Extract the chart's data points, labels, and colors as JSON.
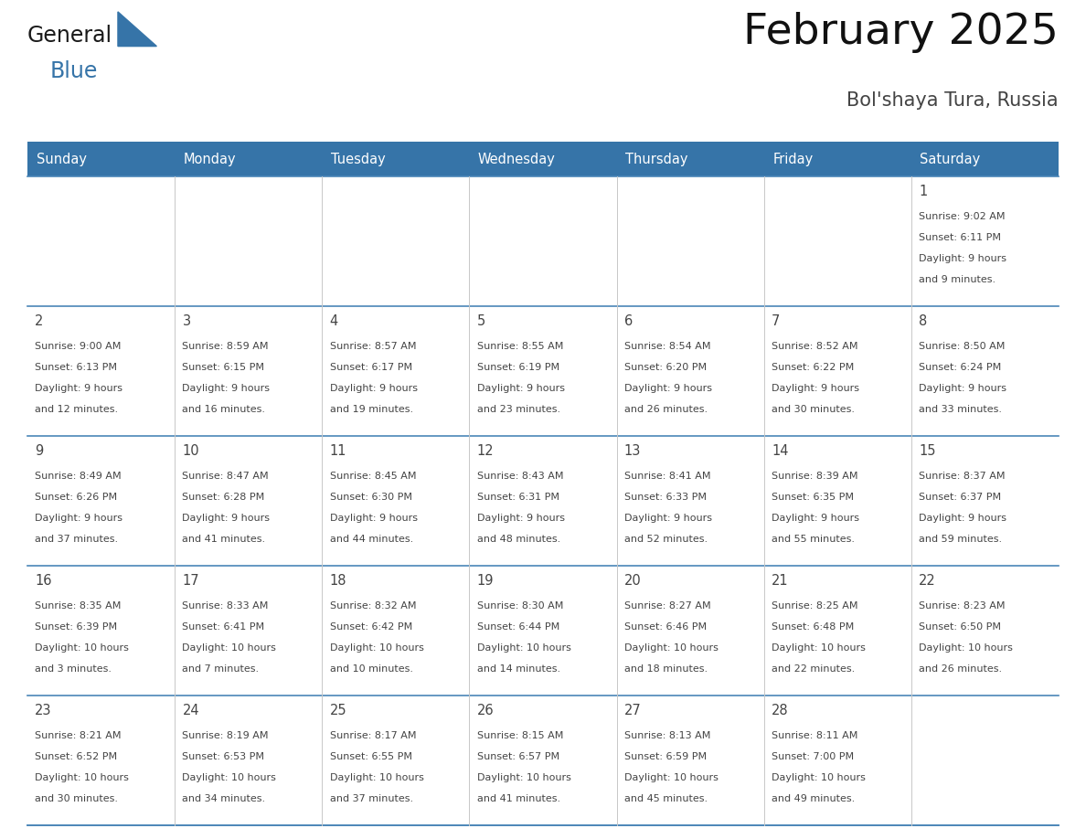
{
  "title": "February 2025",
  "subtitle": "Bol'shaya Tura, Russia",
  "days_of_week": [
    "Sunday",
    "Monday",
    "Tuesday",
    "Wednesday",
    "Thursday",
    "Friday",
    "Saturday"
  ],
  "header_color": "#3674a8",
  "header_text_color": "#ffffff",
  "border_color": "#3674a8",
  "row_border_color": "#4a86b8",
  "text_color": "#444444",
  "title_color": "#111111",
  "subtitle_color": "#444444",
  "logo_general_color": "#1a1a1a",
  "logo_blue_color": "#3674a8",
  "logo_triangle_color": "#3674a8",
  "calendar_data": [
    [
      {
        "day": null,
        "info": ""
      },
      {
        "day": null,
        "info": ""
      },
      {
        "day": null,
        "info": ""
      },
      {
        "day": null,
        "info": ""
      },
      {
        "day": null,
        "info": ""
      },
      {
        "day": null,
        "info": ""
      },
      {
        "day": 1,
        "info": "Sunrise: 9:02 AM\nSunset: 6:11 PM\nDaylight: 9 hours\nand 9 minutes."
      }
    ],
    [
      {
        "day": 2,
        "info": "Sunrise: 9:00 AM\nSunset: 6:13 PM\nDaylight: 9 hours\nand 12 minutes."
      },
      {
        "day": 3,
        "info": "Sunrise: 8:59 AM\nSunset: 6:15 PM\nDaylight: 9 hours\nand 16 minutes."
      },
      {
        "day": 4,
        "info": "Sunrise: 8:57 AM\nSunset: 6:17 PM\nDaylight: 9 hours\nand 19 minutes."
      },
      {
        "day": 5,
        "info": "Sunrise: 8:55 AM\nSunset: 6:19 PM\nDaylight: 9 hours\nand 23 minutes."
      },
      {
        "day": 6,
        "info": "Sunrise: 8:54 AM\nSunset: 6:20 PM\nDaylight: 9 hours\nand 26 minutes."
      },
      {
        "day": 7,
        "info": "Sunrise: 8:52 AM\nSunset: 6:22 PM\nDaylight: 9 hours\nand 30 minutes."
      },
      {
        "day": 8,
        "info": "Sunrise: 8:50 AM\nSunset: 6:24 PM\nDaylight: 9 hours\nand 33 minutes."
      }
    ],
    [
      {
        "day": 9,
        "info": "Sunrise: 8:49 AM\nSunset: 6:26 PM\nDaylight: 9 hours\nand 37 minutes."
      },
      {
        "day": 10,
        "info": "Sunrise: 8:47 AM\nSunset: 6:28 PM\nDaylight: 9 hours\nand 41 minutes."
      },
      {
        "day": 11,
        "info": "Sunrise: 8:45 AM\nSunset: 6:30 PM\nDaylight: 9 hours\nand 44 minutes."
      },
      {
        "day": 12,
        "info": "Sunrise: 8:43 AM\nSunset: 6:31 PM\nDaylight: 9 hours\nand 48 minutes."
      },
      {
        "day": 13,
        "info": "Sunrise: 8:41 AM\nSunset: 6:33 PM\nDaylight: 9 hours\nand 52 minutes."
      },
      {
        "day": 14,
        "info": "Sunrise: 8:39 AM\nSunset: 6:35 PM\nDaylight: 9 hours\nand 55 minutes."
      },
      {
        "day": 15,
        "info": "Sunrise: 8:37 AM\nSunset: 6:37 PM\nDaylight: 9 hours\nand 59 minutes."
      }
    ],
    [
      {
        "day": 16,
        "info": "Sunrise: 8:35 AM\nSunset: 6:39 PM\nDaylight: 10 hours\nand 3 minutes."
      },
      {
        "day": 17,
        "info": "Sunrise: 8:33 AM\nSunset: 6:41 PM\nDaylight: 10 hours\nand 7 minutes."
      },
      {
        "day": 18,
        "info": "Sunrise: 8:32 AM\nSunset: 6:42 PM\nDaylight: 10 hours\nand 10 minutes."
      },
      {
        "day": 19,
        "info": "Sunrise: 8:30 AM\nSunset: 6:44 PM\nDaylight: 10 hours\nand 14 minutes."
      },
      {
        "day": 20,
        "info": "Sunrise: 8:27 AM\nSunset: 6:46 PM\nDaylight: 10 hours\nand 18 minutes."
      },
      {
        "day": 21,
        "info": "Sunrise: 8:25 AM\nSunset: 6:48 PM\nDaylight: 10 hours\nand 22 minutes."
      },
      {
        "day": 22,
        "info": "Sunrise: 8:23 AM\nSunset: 6:50 PM\nDaylight: 10 hours\nand 26 minutes."
      }
    ],
    [
      {
        "day": 23,
        "info": "Sunrise: 8:21 AM\nSunset: 6:52 PM\nDaylight: 10 hours\nand 30 minutes."
      },
      {
        "day": 24,
        "info": "Sunrise: 8:19 AM\nSunset: 6:53 PM\nDaylight: 10 hours\nand 34 minutes."
      },
      {
        "day": 25,
        "info": "Sunrise: 8:17 AM\nSunset: 6:55 PM\nDaylight: 10 hours\nand 37 minutes."
      },
      {
        "day": 26,
        "info": "Sunrise: 8:15 AM\nSunset: 6:57 PM\nDaylight: 10 hours\nand 41 minutes."
      },
      {
        "day": 27,
        "info": "Sunrise: 8:13 AM\nSunset: 6:59 PM\nDaylight: 10 hours\nand 45 minutes."
      },
      {
        "day": 28,
        "info": "Sunrise: 8:11 AM\nSunset: 7:00 PM\nDaylight: 10 hours\nand 49 minutes."
      },
      {
        "day": null,
        "info": ""
      }
    ]
  ]
}
